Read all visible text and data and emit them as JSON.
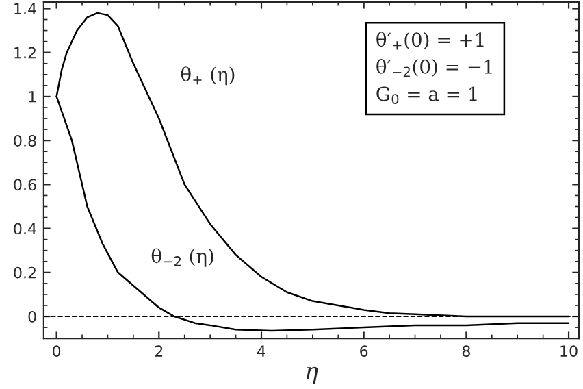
{
  "chart_data": {
    "type": "line",
    "xlabel": "η",
    "xlim": [
      -0.25,
      10.2
    ],
    "ylim": [
      -0.1,
      1.43
    ],
    "xticks": [
      0,
      2,
      4,
      6,
      8,
      10
    ],
    "yticks": [
      0,
      0.2,
      0.4,
      0.6,
      0.8,
      1,
      1.2,
      1.4
    ],
    "grid": false,
    "legend": false,
    "series": [
      {
        "color": "#000000",
        "x": [
          0,
          0.1,
          0.2,
          0.4,
          0.6,
          0.8,
          1.0,
          1.2,
          1.5,
          2,
          2.5,
          3,
          3.5,
          4,
          4.5,
          5,
          5.5,
          6,
          6.5,
          7,
          8,
          9,
          10
        ],
        "values": [
          1,
          1.12,
          1.2,
          1.3,
          1.36,
          1.38,
          1.37,
          1.32,
          1.15,
          0.9,
          0.6,
          0.42,
          0.28,
          0.18,
          0.11,
          0.07,
          0.05,
          0.03,
          0.015,
          0.01,
          0,
          0,
          0
        ]
      },
      {
        "color": "#000000",
        "x": [
          0,
          0.3,
          0.6,
          0.9,
          1.2,
          1.6,
          2,
          2.3,
          2.7,
          3,
          3.5,
          4.2,
          5,
          6,
          7,
          8,
          9,
          10
        ],
        "values": [
          1,
          0.8,
          0.5,
          0.33,
          0.2,
          0.12,
          0.04,
          0,
          -0.03,
          -0.04,
          -0.06,
          -0.065,
          -0.06,
          -0.05,
          -0.04,
          -0.04,
          -0.03,
          -0.03
        ]
      }
    ],
    "ref_lines": [
      {
        "axis": "y",
        "value": 0,
        "line_style": "dashed",
        "color": "#000000"
      }
    ],
    "annotations": [
      "θ$_{+}$ (η)",
      "θ$_{−2}$ (η)",
      "θ′$_{+}$(0) = +1\nθ′$_{−2}$(0) = −1\nG$_{0}$ = a = 1"
    ]
  }
}
